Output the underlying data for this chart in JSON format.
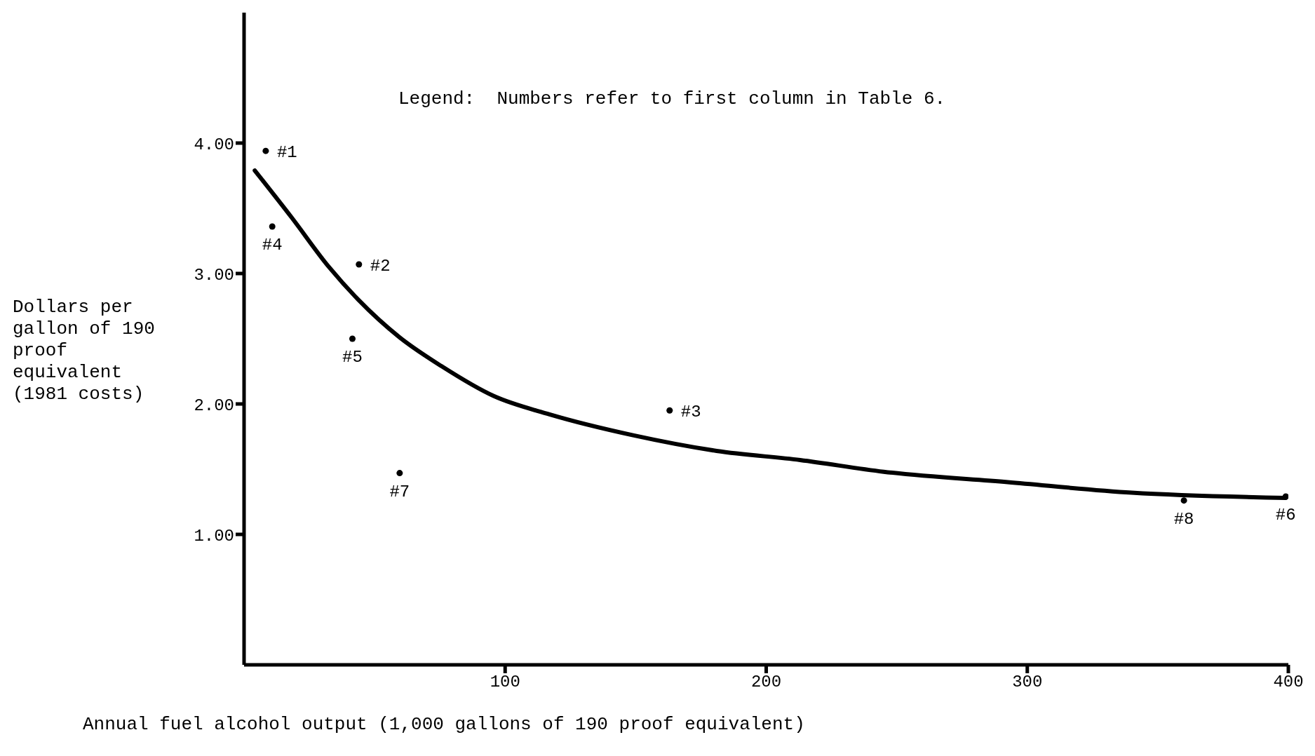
{
  "chart_data": {
    "type": "scatter",
    "xlabel": "Annual fuel alcohol output (1,000 gallons of 190 proof equivalent)",
    "ylabel": "Dollars per gallon of 190 proof equivalent (1981 costs)",
    "x": [
      8.3,
      10.8,
      44,
      41.5,
      59.6,
      163,
      360,
      399
    ],
    "series": [
      {
        "color": "#000000",
        "marker": "circle",
        "values": [
          3.94,
          3.36,
          3.07,
          2.5,
          1.47,
          1.95,
          1.26,
          1.29
        ]
      },
      {
        "type": "line",
        "color": "#000000",
        "line_style": "solid",
        "marker": "none",
        "x": [
          4.1,
          18.2,
          32.5,
          43.7,
          59.6,
          75.6,
          95.7,
          117,
          149,
          181,
          213,
          245,
          292.5,
          340,
          399
        ],
        "values": [
          3.79,
          3.43,
          3.05,
          2.8,
          2.51,
          2.29,
          2.06,
          1.92,
          1.76,
          1.64,
          1.57,
          1.48,
          1.4,
          1.32,
          1.28
        ]
      }
    ],
    "xlim": [
      0,
      400
    ],
    "xticks": [
      100,
      200,
      300,
      400
    ],
    "ylim": [
      0,
      5
    ],
    "yticks": [
      {
        "value": 1,
        "label": "1.00"
      },
      {
        "value": 2,
        "label": "2.00"
      },
      {
        "value": 3,
        "label": "3.00"
      },
      {
        "value": 4,
        "label": "4.00"
      }
    ],
    "grid": false,
    "legend": false,
    "annotations": [
      "Legend:  Numbers refer to first column in Table 6.",
      {
        "text": "#1",
        "x": 8.3,
        "y": 3.94
      },
      {
        "text": "#4",
        "x": 10.8,
        "y": 3.36
      },
      {
        "text": "#2",
        "x": 44,
        "y": 3.07
      },
      {
        "text": "#5",
        "x": 41.5,
        "y": 2.5
      },
      {
        "text": "#7",
        "x": 59.6,
        "y": 1.47
      },
      {
        "text": "#3",
        "x": 163,
        "y": 1.95
      },
      {
        "text": "#8",
        "x": 360,
        "y": 1.26
      },
      {
        "text": "#6",
        "x": 399,
        "y": 1.29
      }
    ]
  }
}
